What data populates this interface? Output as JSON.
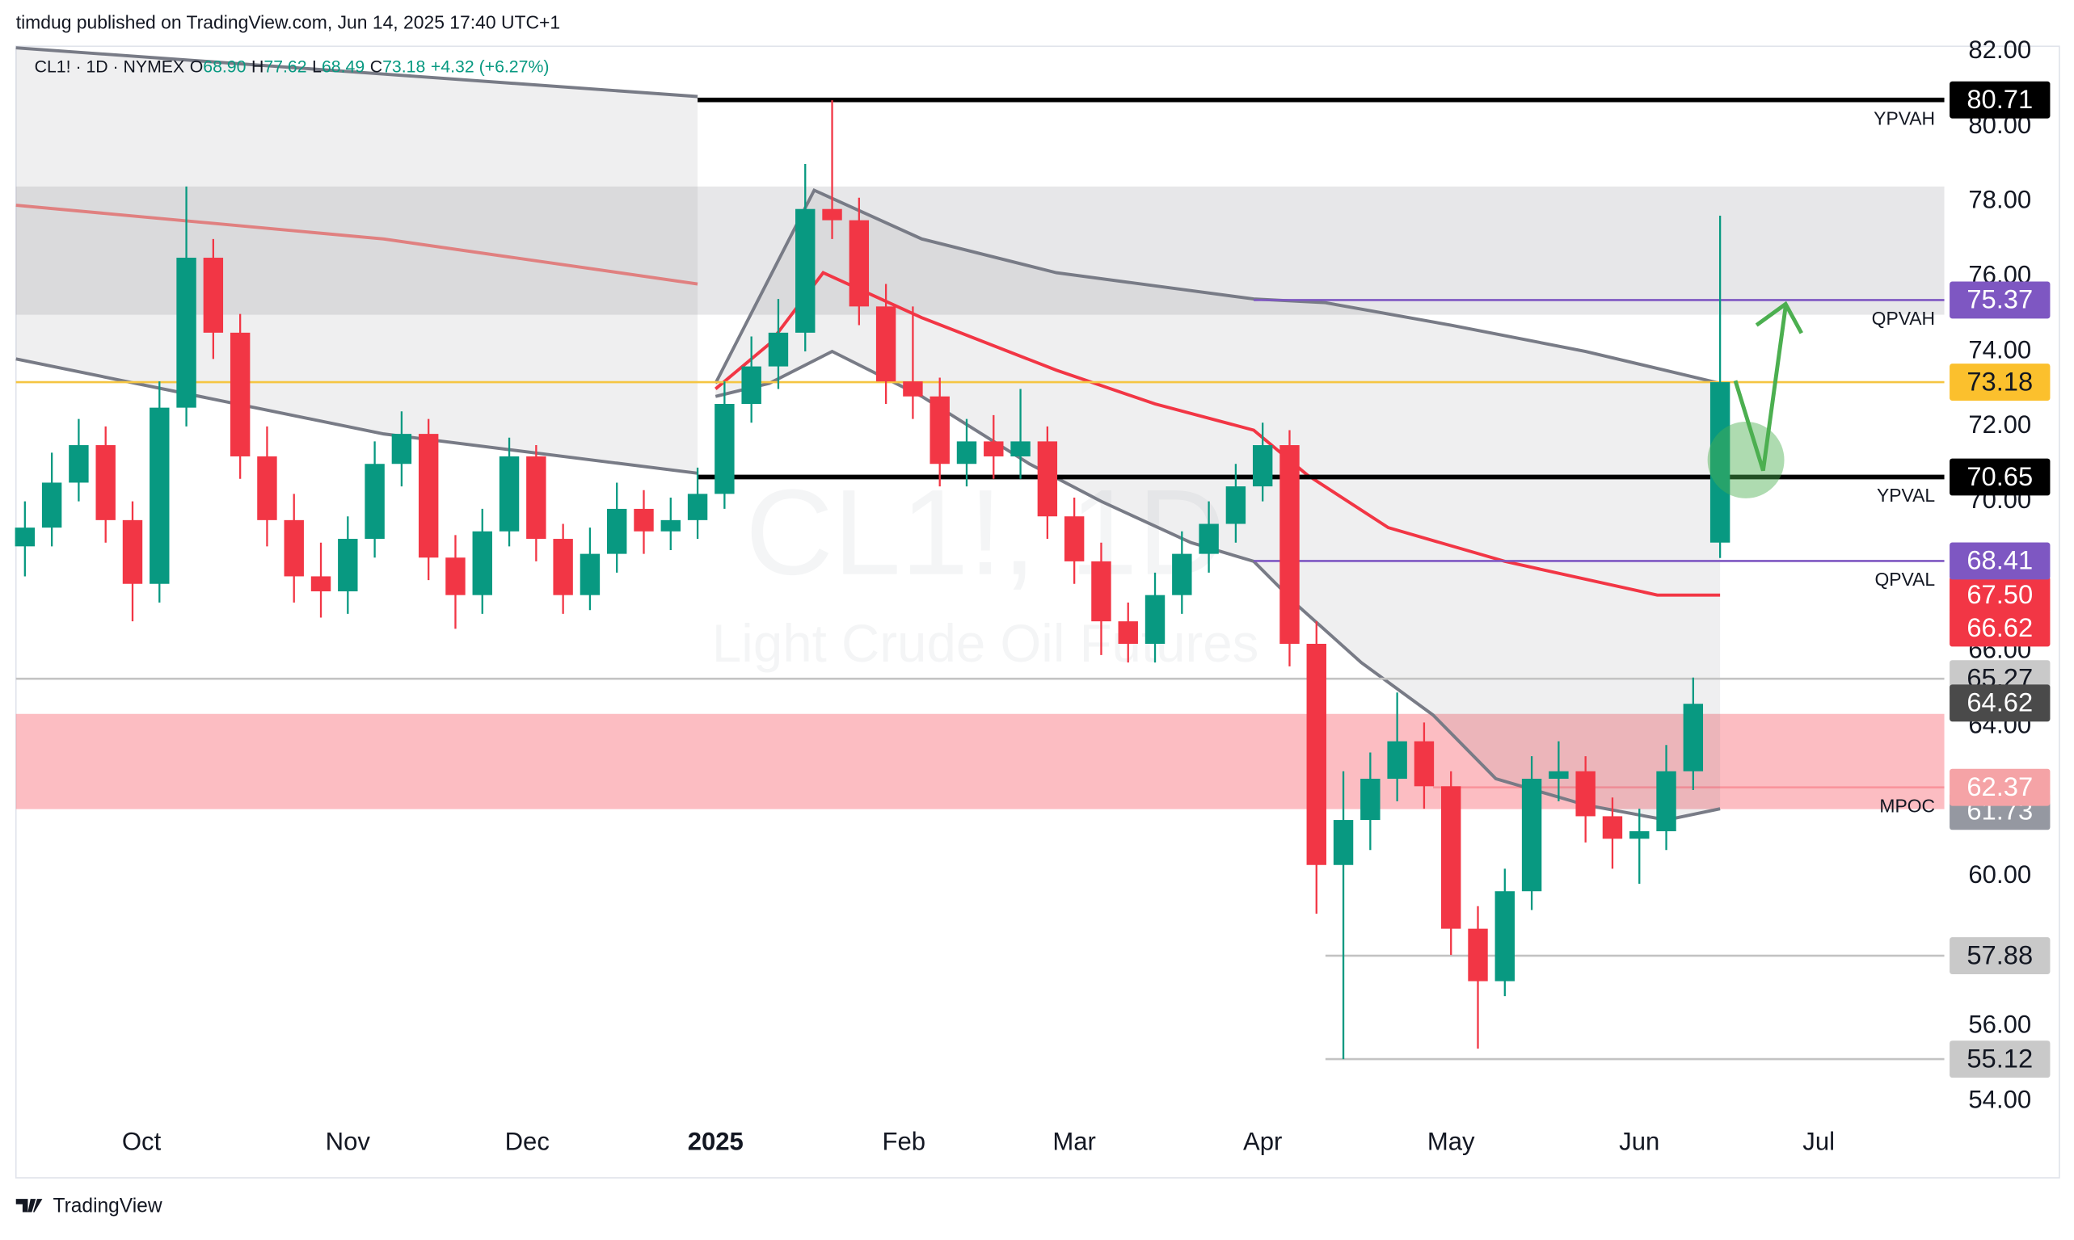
{
  "header": {
    "published": "timdug published on TradingView.com, Jun 14, 2025 17:40 UTC+1"
  },
  "footer": {
    "brand": "TradingView"
  },
  "chart_data": {
    "type": "candlestick",
    "legend": {
      "symbol": "CL1! · 1D · NYMEX",
      "items": [
        {
          "label": "O",
          "value": "68.90"
        },
        {
          "label": "H",
          "value": "77.62"
        },
        {
          "label": "L",
          "value": "68.49"
        },
        {
          "label": "C",
          "value": "73.18"
        }
      ],
      "change": "+4.32 (+6.27%)"
    },
    "watermark": {
      "title": "CL1!, 1D",
      "subtitle": "Light Crude Oil Futures"
    },
    "up_color": "#089981",
    "down_color": "#f23645",
    "x": [
      0,
      3,
      6,
      9,
      12,
      15,
      18,
      21,
      24,
      27,
      30,
      33,
      36,
      39,
      42,
      45,
      48,
      51,
      54,
      57,
      60,
      63,
      66,
      69,
      72,
      75,
      78,
      81,
      84,
      87,
      90,
      93,
      96,
      99,
      102,
      105,
      108,
      111,
      114,
      117,
      120,
      123,
      126,
      129,
      132,
      135,
      138,
      141,
      144,
      147,
      150,
      153,
      156,
      159,
      162,
      165,
      168,
      171,
      174,
      177,
      180,
      183,
      186,
      189
    ],
    "open": [
      68.8,
      69.3,
      70.5,
      71.5,
      69.5,
      67.8,
      72.5,
      76.5,
      74.5,
      71.2,
      69.5,
      68.0,
      67.6,
      69.0,
      71.0,
      71.8,
      68.5,
      67.5,
      69.2,
      71.2,
      69.0,
      67.5,
      68.6,
      69.8,
      69.2,
      69.5,
      70.2,
      72.6,
      73.6,
      74.5,
      77.8,
      77.5,
      75.2,
      73.2,
      72.8,
      71.0,
      71.6,
      71.2,
      71.6,
      69.6,
      68.4,
      66.8,
      66.2,
      67.5,
      68.6,
      69.4,
      70.4,
      71.5,
      66.2,
      60.3,
      61.5,
      62.6,
      63.6,
      62.4,
      58.6,
      57.2,
      59.6,
      62.6,
      62.8,
      61.6,
      61.0,
      61.2,
      62.8,
      68.9
    ],
    "high": [
      70.0,
      71.3,
      72.2,
      72.0,
      70.0,
      73.2,
      78.4,
      77.0,
      75.0,
      72.0,
      70.2,
      68.9,
      69.6,
      71.6,
      72.4,
      72.2,
      69.1,
      69.8,
      71.7,
      71.5,
      69.4,
      69.3,
      70.5,
      70.3,
      70.1,
      70.9,
      73.2,
      74.4,
      75.4,
      79.0,
      80.7,
      78.1,
      75.8,
      75.2,
      73.3,
      72.2,
      72.3,
      73.0,
      72.0,
      70.1,
      68.9,
      67.3,
      68.1,
      69.2,
      70.0,
      71.0,
      72.1,
      71.9,
      66.8,
      62.8,
      63.3,
      64.9,
      64.1,
      62.8,
      59.2,
      60.2,
      63.2,
      63.6,
      63.2,
      62.1,
      61.8,
      63.5,
      65.3,
      77.62
    ],
    "low": [
      68.0,
      68.8,
      70.0,
      68.9,
      66.8,
      67.3,
      72.0,
      73.8,
      70.6,
      68.8,
      67.3,
      66.9,
      67.0,
      68.5,
      70.4,
      67.9,
      66.6,
      67.0,
      68.8,
      68.4,
      67.0,
      67.1,
      68.1,
      68.6,
      68.7,
      69.0,
      69.8,
      72.1,
      73.0,
      74.0,
      77.0,
      74.7,
      72.6,
      72.2,
      70.4,
      70.4,
      70.6,
      70.6,
      69.0,
      67.8,
      65.9,
      65.7,
      65.7,
      67.0,
      68.1,
      68.9,
      70.0,
      65.6,
      59.0,
      55.12,
      60.7,
      62.0,
      61.8,
      57.9,
      55.4,
      56.8,
      59.1,
      62.0,
      60.9,
      60.2,
      59.8,
      60.7,
      62.3,
      68.49
    ],
    "close": [
      69.3,
      70.5,
      71.5,
      69.5,
      67.8,
      72.5,
      76.5,
      74.5,
      71.2,
      69.5,
      68.0,
      67.6,
      69.0,
      71.0,
      71.8,
      68.5,
      67.5,
      69.2,
      71.2,
      69.0,
      67.5,
      68.6,
      69.8,
      69.2,
      69.5,
      70.2,
      72.6,
      73.6,
      74.5,
      77.8,
      77.5,
      75.2,
      73.2,
      72.8,
      71.0,
      71.6,
      71.2,
      71.6,
      69.6,
      68.4,
      66.8,
      66.2,
      67.5,
      68.6,
      69.4,
      70.4,
      71.5,
      66.2,
      60.3,
      61.5,
      62.6,
      63.6,
      62.4,
      58.6,
      57.2,
      59.6,
      62.6,
      62.8,
      61.6,
      61.0,
      61.2,
      62.8,
      64.6,
      73.18
    ],
    "xlim": [
      -1,
      214
    ],
    "xticks": [
      {
        "value": 13,
        "label": "Oct"
      },
      {
        "value": 36,
        "label": "Nov"
      },
      {
        "value": 56,
        "label": "Dec"
      },
      {
        "value": 77,
        "label": "2025"
      },
      {
        "value": 98,
        "label": "Feb"
      },
      {
        "value": 117,
        "label": "Mar"
      },
      {
        "value": 138,
        "label": "Apr"
      },
      {
        "value": 159,
        "label": "May"
      },
      {
        "value": 180,
        "label": "Jun"
      },
      {
        "value": 200,
        "label": "Jul"
      }
    ],
    "ylim": [
      54,
      82
    ],
    "yticks": [
      {
        "value": 54,
        "label": "54.00"
      },
      {
        "value": 56,
        "label": "56.00"
      },
      {
        "value": 58,
        "label": "58.00"
      },
      {
        "value": 60,
        "label": "60.00"
      },
      {
        "value": 62,
        "label": "62.00"
      },
      {
        "value": 64,
        "label": "64.00"
      },
      {
        "value": 66,
        "label": "66.00"
      },
      {
        "value": 68,
        "label": "68.00"
      },
      {
        "value": 70,
        "label": "70.00"
      },
      {
        "value": 72,
        "label": "72.00"
      },
      {
        "value": 74,
        "label": "74.00"
      },
      {
        "value": 76,
        "label": "76.00"
      },
      {
        "value": 78,
        "label": "78.00"
      },
      {
        "value": 80,
        "label": "80.00"
      },
      {
        "value": 82,
        "label": "82.00"
      }
    ],
    "zones": [
      {
        "from": 74.98,
        "to": 78.4,
        "color": "rgba(120,123,134,0.18)"
      },
      {
        "from": 61.79,
        "to": 64.33,
        "color": "rgba(247,82,95,0.38)"
      }
    ],
    "indicator_lines": [
      {
        "color": "#787b86",
        "x": [
          -1,
          40,
          75
        ],
        "values": [
          82.1,
          81.4,
          80.8
        ]
      },
      {
        "color": "#e08080",
        "x": [
          -1,
          40,
          75
        ],
        "values": [
          77.9,
          77.0,
          75.8
        ]
      },
      {
        "color": "#787b86",
        "x": [
          -1,
          40,
          75
        ],
        "values": [
          73.8,
          71.8,
          70.75
        ]
      },
      {
        "color": "#787b86",
        "x": [
          77,
          88,
          100,
          115,
          137,
          145,
          159,
          174,
          189
        ],
        "values": [
          73.15,
          78.3,
          77.0,
          76.1,
          75.4,
          75.3,
          74.7,
          74.0,
          73.15
        ]
      },
      {
        "color": "#f23645",
        "x": [
          77,
          83,
          89,
          100,
          115,
          126,
          137,
          143,
          152,
          165,
          182,
          189
        ],
        "values": [
          73.0,
          74.2,
          76.1,
          74.9,
          73.5,
          72.6,
          71.9,
          70.7,
          69.3,
          68.4,
          67.5,
          67.5
        ]
      },
      {
        "color": "#787b86",
        "x": [
          77,
          83,
          90,
          100,
          112,
          120,
          130,
          137,
          142,
          149,
          157,
          164,
          174,
          183,
          189
        ],
        "values": [
          72.8,
          73.15,
          74.0,
          72.8,
          71.0,
          70.0,
          68.9,
          68.4,
          67.2,
          65.7,
          64.3,
          62.6,
          61.9,
          61.5,
          61.8
        ]
      }
    ],
    "levels": [
      {
        "value": 65.27,
        "label": "65.27",
        "start": -1,
        "line_color": "#c3c3c3",
        "tag_color": "#c9c9c9",
        "text_color": "#131722"
      },
      {
        "value": 64.62,
        "label": "64.62",
        "tag_color": "#4a4a4a",
        "text_color": "#ffffff"
      },
      {
        "value": 61.73,
        "label": "61.73",
        "tag_color": "#9598a1",
        "text_color": "#ffffff"
      },
      {
        "value": 62.37,
        "label": "62.37",
        "name": "MPOC",
        "start": 157,
        "line_color": "rgba(242,54,69,0.3)",
        "tag_color": "#f5a3a6",
        "text_color": "#ffffff"
      },
      {
        "value": 57.88,
        "label": "57.88",
        "start": 145,
        "line_color": "#c3c3c3",
        "tag_color": "#c9c9c9",
        "text_color": "#131722"
      },
      {
        "value": 55.12,
        "label": "55.12",
        "start": 145,
        "line_color": "#c3c3c3",
        "tag_color": "#c9c9c9",
        "text_color": "#131722"
      },
      {
        "value": 67.5,
        "label": "67.50",
        "tag_color": "#f23645",
        "text_color": "#ffffff"
      },
      {
        "value": 66.62,
        "label": "66.62",
        "tag_color": "#f23645",
        "text_color": "#ffffff"
      },
      {
        "value": 68.41,
        "label": "68.41",
        "name": "QPVAL",
        "start": 137,
        "line_color": "#7e57c2",
        "tag_color": "#7e57c2",
        "text_color": "#ffffff"
      },
      {
        "value": 73.18,
        "label": "73.18",
        "start": -1,
        "line_color": "#f5c542",
        "tag_color": "#fbc02d",
        "text_color": "#131722"
      },
      {
        "value": 75.37,
        "label": "75.37",
        "name": "QPVAH",
        "start": 137,
        "line_color": "#7e57c2",
        "tag_color": "#7e57c2",
        "text_color": "#ffffff"
      },
      {
        "value": 70.65,
        "label": "70.65",
        "name": "YPVAL",
        "start": 75,
        "line_color": "#000000",
        "tag_color": "#000000",
        "text_color": "#ffffff",
        "thick": true
      },
      {
        "value": 80.71,
        "label": "80.71",
        "name": "YPVAH",
        "start": 75,
        "line_color": "#000000",
        "tag_color": "#000000",
        "text_color": "#ffffff",
        "thick": true
      }
    ]
  }
}
